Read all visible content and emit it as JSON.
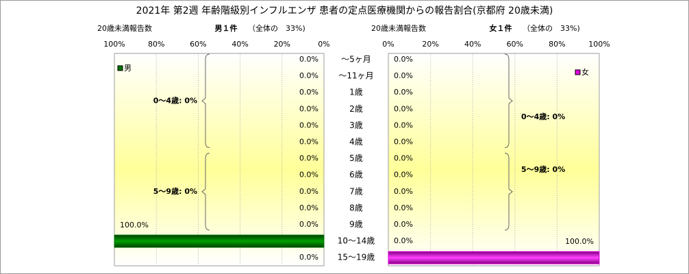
{
  "title": "2021年 第2週 年齢階級別インフルエンザ 患者の定点医療機関からの報告割合(京都府 20歳未満)",
  "chart_data": [
    {
      "type": "bar",
      "orientation": "horizontal",
      "reversed": true,
      "header": "20歳未満報告数",
      "subtitle": "男１件",
      "share": "（全体の　33%)",
      "categories": [
        "～5ヶ月",
        "～11ヶ月",
        "1歳",
        "2歳",
        "3歳",
        "4歳",
        "5歳",
        "6歳",
        "7歳",
        "8歳",
        "9歳",
        "10～14歳",
        "15～19歳"
      ],
      "series": [
        {
          "name": "男",
          "color": "#007000",
          "values": [
            0,
            0,
            0,
            0,
            0,
            0,
            0,
            0,
            0,
            0,
            0,
            100,
            0
          ],
          "value_labels": [
            "0.0%",
            "0.0%",
            "0.0%",
            "0.0%",
            "0.0%",
            "0.0%",
            "0.0%",
            "0.0%",
            "0.0%",
            "0.0%",
            "0.0%",
            "100.0%",
            "0.0%"
          ]
        }
      ],
      "xlim": [
        0,
        100
      ],
      "xticks": [
        {
          "value": 0,
          "label": "0%"
        },
        {
          "value": 20,
          "label": "20%"
        },
        {
          "value": 40,
          "label": "40%"
        },
        {
          "value": 60,
          "label": "60%"
        },
        {
          "value": 80,
          "label": "80%"
        },
        {
          "value": 100,
          "label": "100%"
        }
      ],
      "grid": true,
      "legend": "top-left",
      "annotations": [
        "0～4歳: 0%",
        "5～9歳: 0%"
      ]
    },
    {
      "type": "bar",
      "orientation": "horizontal",
      "reversed": false,
      "header": "20歳未満報告数",
      "subtitle": "女１件",
      "share": "（全体の　33%)",
      "series": [
        {
          "name": "女",
          "color": "#e000e0",
          "values": [
            0,
            0,
            0,
            0,
            0,
            0,
            0,
            0,
            0,
            0,
            0,
            0,
            100
          ],
          "value_labels": [
            "0.0%",
            "0.0%",
            "0.0%",
            "0.0%",
            "0.0%",
            "0.0%",
            "0.0%",
            "0.0%",
            "0.0%",
            "0.0%",
            "0.0%",
            "0.0%",
            "100.0%"
          ]
        }
      ],
      "xlim": [
        0,
        100
      ],
      "xticks": [
        {
          "value": 0,
          "label": "0%"
        },
        {
          "value": 20,
          "label": "20%"
        },
        {
          "value": 40,
          "label": "40%"
        },
        {
          "value": 60,
          "label": "60%"
        },
        {
          "value": 80,
          "label": "80%"
        },
        {
          "value": 100,
          "label": "100%"
        }
      ],
      "grid": true,
      "legend": "top-right",
      "annotations": [
        "0～4歳: 0%",
        "5～9歳: 0%"
      ]
    }
  ]
}
